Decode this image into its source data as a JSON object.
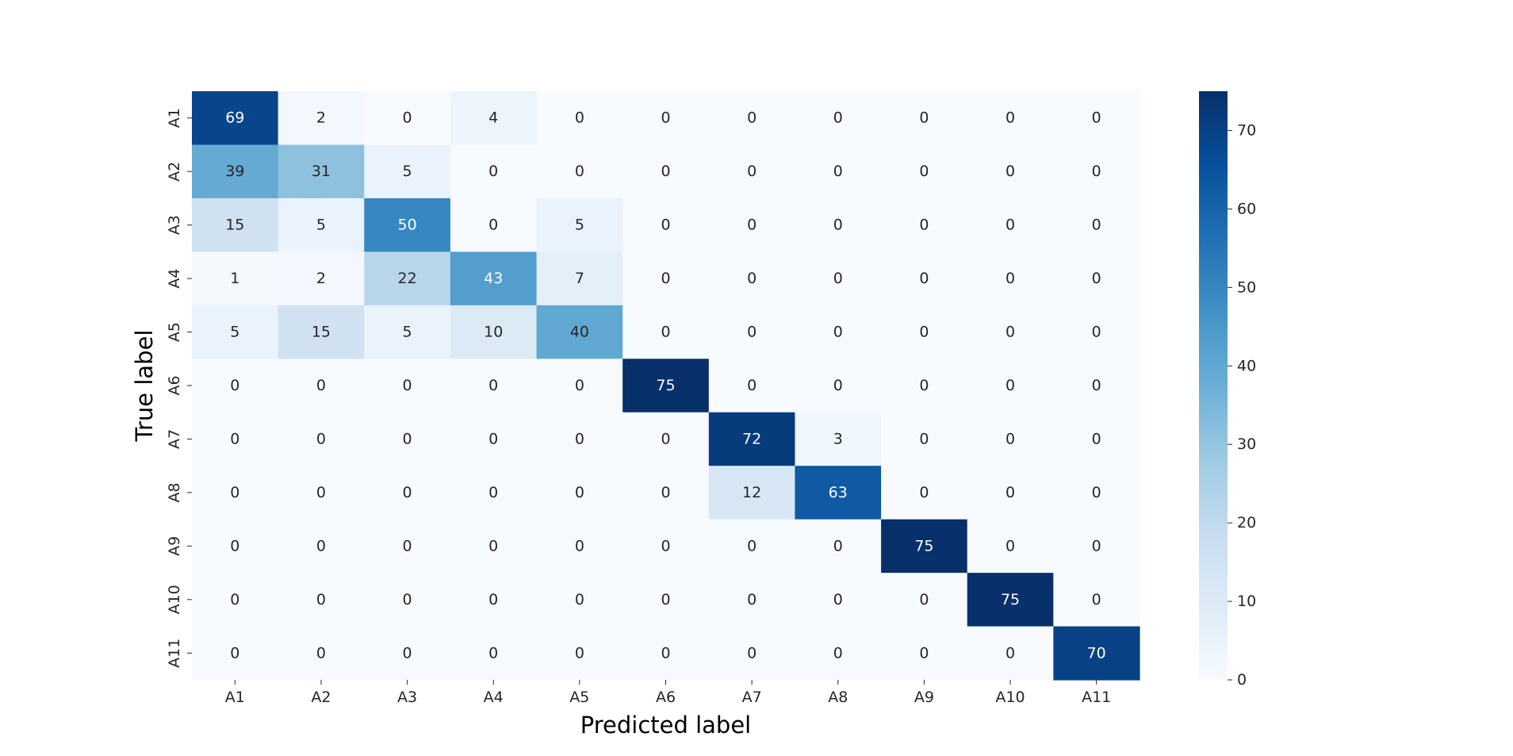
{
  "chart_data": {
    "type": "heatmap",
    "title": "",
    "xlabel": "Predicted label",
    "ylabel": "True label",
    "x_categories": [
      "A1",
      "A2",
      "A3",
      "A4",
      "A5",
      "A6",
      "A7",
      "A8",
      "A9",
      "A10",
      "A11"
    ],
    "y_categories": [
      "A1",
      "A2",
      "A3",
      "A4",
      "A5",
      "A6",
      "A7",
      "A8",
      "A9",
      "A10",
      "A11"
    ],
    "values": [
      [
        69,
        2,
        0,
        4,
        0,
        0,
        0,
        0,
        0,
        0,
        0
      ],
      [
        39,
        31,
        5,
        0,
        0,
        0,
        0,
        0,
        0,
        0,
        0
      ],
      [
        15,
        5,
        50,
        0,
        5,
        0,
        0,
        0,
        0,
        0,
        0
      ],
      [
        1,
        2,
        22,
        43,
        7,
        0,
        0,
        0,
        0,
        0,
        0
      ],
      [
        5,
        15,
        5,
        10,
        40,
        0,
        0,
        0,
        0,
        0,
        0
      ],
      [
        0,
        0,
        0,
        0,
        0,
        75,
        0,
        0,
        0,
        0,
        0
      ],
      [
        0,
        0,
        0,
        0,
        0,
        0,
        72,
        3,
        0,
        0,
        0
      ],
      [
        0,
        0,
        0,
        0,
        0,
        0,
        12,
        63,
        0,
        0,
        0
      ],
      [
        0,
        0,
        0,
        0,
        0,
        0,
        0,
        0,
        75,
        0,
        0
      ],
      [
        0,
        0,
        0,
        0,
        0,
        0,
        0,
        0,
        0,
        75,
        0
      ],
      [
        0,
        0,
        0,
        0,
        0,
        0,
        0,
        0,
        0,
        0,
        70
      ]
    ],
    "value_range": [
      0,
      75
    ],
    "colormap": "Blues",
    "colorbar": {
      "ticks": [
        0,
        10,
        20,
        30,
        40,
        50,
        60,
        70
      ]
    },
    "annotations": true,
    "grid": false
  }
}
